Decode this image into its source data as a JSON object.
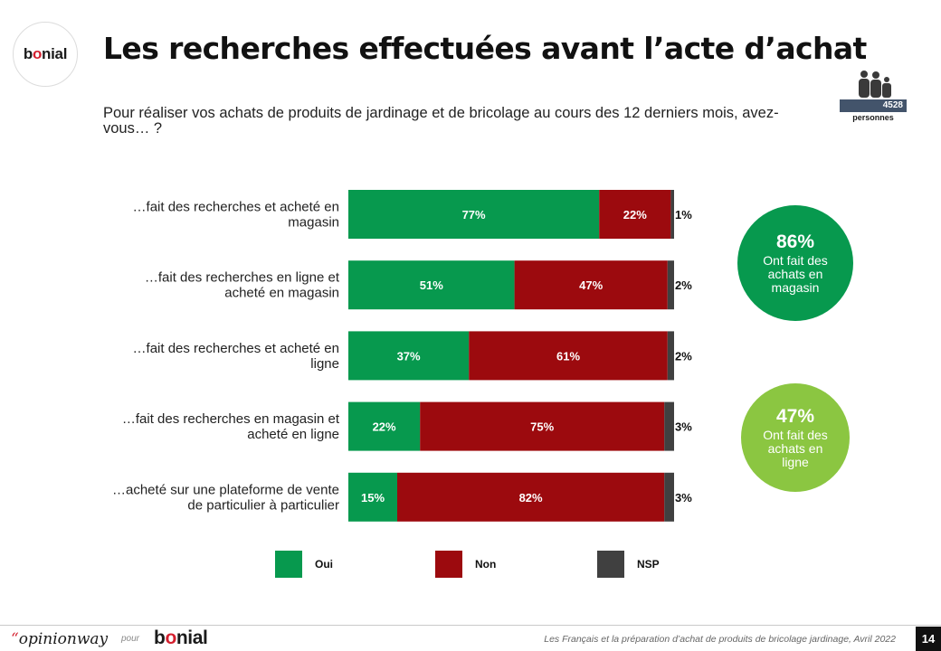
{
  "header": {
    "logo_pre": "b",
    "logo_o": "o",
    "logo_post": "nial",
    "title": "Les recherches effectuées avant l’acte d’achat",
    "question": "Pour réaliser vos achats de produits de jardinage et de bricolage au cours des 12 derniers mois, avez-vous… ?",
    "sample_count": "4528",
    "sample_label": "personnes"
  },
  "chart_data": {
    "type": "bar",
    "orientation": "horizontal",
    "stacked": true,
    "categories": [
      "…fait des recherches et acheté en magasin",
      "…fait des recherches en ligne et acheté en magasin",
      "…fait des recherches et acheté en ligne",
      "…fait des recherches en magasin et acheté en ligne",
      "…acheté sur une plateforme de vente de particulier à particulier"
    ],
    "series": [
      {
        "name": "Oui",
        "color": "#07994e",
        "values": [
          77,
          51,
          37,
          22,
          15
        ]
      },
      {
        "name": "Non",
        "color": "#9c0a0e",
        "values": [
          22,
          47,
          61,
          75,
          82
        ]
      },
      {
        "name": "NSP",
        "color": "#404040",
        "values": [
          1,
          2,
          2,
          3,
          3
        ]
      }
    ],
    "value_suffix": "%",
    "xlim": [
      0,
      100
    ],
    "legend_position": "bottom"
  },
  "kpis": [
    {
      "value": "86%",
      "text": "Ont fait des achats en magasin",
      "color": "#07994e"
    },
    {
      "value": "47%",
      "text": "Ont fait des achats en ligne",
      "color": "#8bc641"
    }
  ],
  "legend": {
    "oui": "Oui",
    "non": "Non",
    "nsp": "NSP"
  },
  "footer": {
    "ow_quote": "“",
    "ow_brand": "opinionway",
    "pour": "pour",
    "logo_pre": "b",
    "logo_o": "o",
    "logo_post": "nial",
    "caption": "Les Français et la préparation d’achat de produits de bricolage jardinage, Avril 2022",
    "page": "14"
  }
}
